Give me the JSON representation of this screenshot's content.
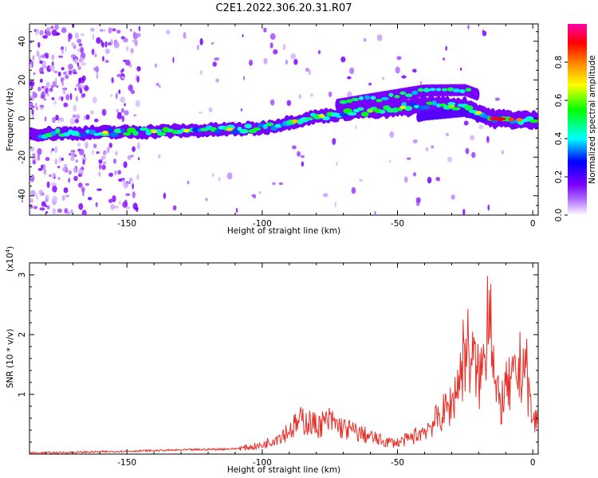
{
  "figure": {
    "title": "C2E1.2022.306.20.31.R07"
  },
  "chart_data": [
    {
      "type": "heatmap",
      "xlabel": "Height of straight line (km)",
      "ylabel": "Frequency (Hz)",
      "xlim": [
        -186,
        2
      ],
      "ylim": [
        -50,
        49
      ],
      "xticks": [
        -150,
        -100,
        -50,
        0
      ],
      "yticks": [
        -40,
        -20,
        0,
        20,
        40
      ],
      "colorbar": {
        "label": "Normalized spectral amplitude",
        "range": [
          0,
          1
        ],
        "ticks": [
          "0.0",
          "0.2",
          "0.4",
          "0.6",
          "0.8"
        ],
        "colors": [
          "#ffffff",
          "#8a00ff",
          "#0000ff",
          "#00ffff",
          "#00ff00",
          "#ffff00",
          "#ff7f00",
          "#ff0000",
          "#ff00aa"
        ]
      },
      "band_centerline": [
        {
          "x": -186,
          "y": -8
        },
        {
          "x": -150,
          "y": -7
        },
        {
          "x": -120,
          "y": -6
        },
        {
          "x": -100,
          "y": -5
        },
        {
          "x": -80,
          "y": 1
        },
        {
          "x": -60,
          "y": 4
        },
        {
          "x": -40,
          "y": 7
        },
        {
          "x": -25,
          "y": 6
        },
        {
          "x": -15,
          "y": 0
        },
        {
          "x": 0,
          "y": -1
        }
      ]
    },
    {
      "type": "line",
      "xlabel": "Height of straight line (km)",
      "ylabel": "SNR (10 * v/v)",
      "y_multiplier": "(x10",
      "y_multiplier_exp": "4",
      "y_multiplier_close": ")",
      "xlim": [
        -186,
        2
      ],
      "ylim": [
        0,
        3.2
      ],
      "xticks": [
        -150,
        -100,
        -50,
        0
      ],
      "yticks": [
        1,
        2,
        3
      ],
      "color": "#e8302a",
      "series": [
        {
          "values": [
            [
              -186,
              0.02
            ],
            [
              -170,
              0.03
            ],
            [
              -150,
              0.05
            ],
            [
              -130,
              0.07
            ],
            [
              -120,
              0.08
            ],
            [
              -110,
              0.09
            ],
            [
              -100,
              0.15
            ],
            [
              -95,
              0.28
            ],
            [
              -90,
              0.42
            ],
            [
              -85,
              0.6
            ],
            [
              -80,
              0.5
            ],
            [
              -75,
              0.58
            ],
            [
              -70,
              0.45
            ],
            [
              -65,
              0.38
            ],
            [
              -60,
              0.3
            ],
            [
              -55,
              0.22
            ],
            [
              -50,
              0.2
            ],
            [
              -45,
              0.28
            ],
            [
              -40,
              0.42
            ],
            [
              -35,
              0.62
            ],
            [
              -30,
              0.88
            ],
            [
              -27,
              1.35
            ],
            [
              -25,
              1.9
            ],
            [
              -22,
              1.6
            ],
            [
              -20,
              1.3
            ],
            [
              -18,
              1.6
            ],
            [
              -16,
              3.2
            ],
            [
              -14,
              1.1
            ],
            [
              -12,
              0.85
            ],
            [
              -10,
              1.1
            ],
            [
              -7,
              1.25
            ],
            [
              -5,
              1.45
            ],
            [
              -3,
              1.7
            ],
            [
              -1,
              0.9
            ],
            [
              0,
              0.55
            ],
            [
              2,
              0.62
            ]
          ]
        }
      ]
    }
  ]
}
